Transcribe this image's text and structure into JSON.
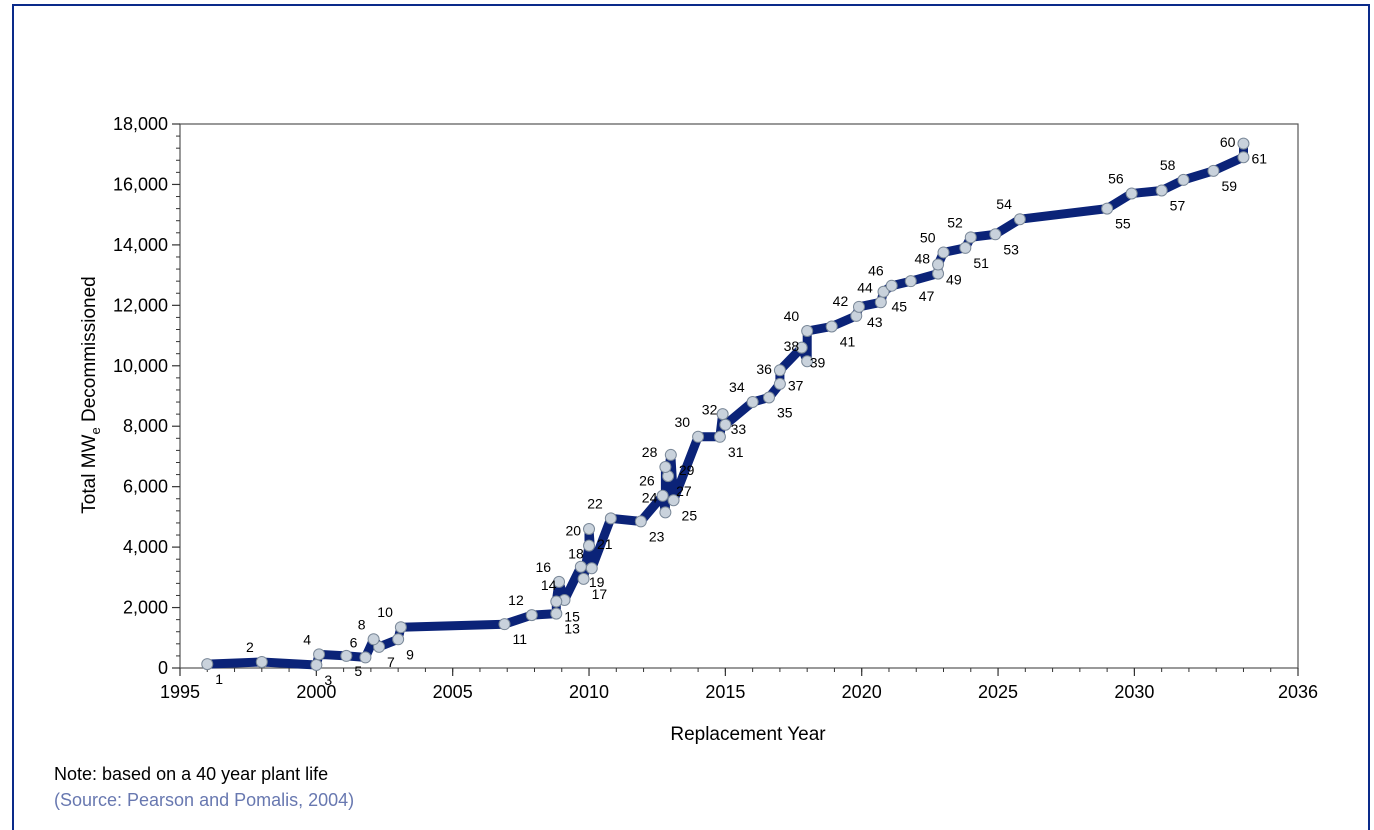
{
  "note": "Note:  based on a 40 year plant life",
  "source": "(Source: Pearson and Pomalis, 2004)",
  "colors": {
    "line": "#0b2378",
    "marker_fill": "#c9d2dc",
    "marker_stroke": "#7a8898",
    "frame": "#0a2a8a"
  },
  "chart_data": {
    "type": "line",
    "title": "",
    "xlabel": "Replacement Year",
    "ylabel_prefix": "Total MW",
    "ylabel_sub": "e",
    "ylabel_suffix": " Decommissioned",
    "xlim": [
      1995,
      2036
    ],
    "ylim": [
      0,
      18000
    ],
    "xticks": [
      1995,
      2000,
      2005,
      2010,
      2015,
      2020,
      2025,
      2030,
      2036
    ],
    "xtick_labels": [
      "1995",
      "2000",
      "2005",
      "2010",
      "2015",
      "2020",
      "2025",
      "2030",
      "2036"
    ],
    "yticks": [
      0,
      2000,
      4000,
      6000,
      8000,
      10000,
      12000,
      14000,
      16000,
      18000
    ],
    "ytick_labels": [
      "0",
      "2,000",
      "4,000",
      "6,000",
      "8,000",
      "10,000",
      "12,000",
      "14,000",
      "16,000",
      "18,000"
    ],
    "grid": false,
    "series": [
      {
        "points": [
          {
            "n": "1",
            "x": 1996.0,
            "y": 130
          },
          {
            "n": "2",
            "x": 1998.0,
            "y": 200
          },
          {
            "n": "3",
            "x": 2000.0,
            "y": 100
          },
          {
            "n": "4",
            "x": 2000.1,
            "y": 450
          },
          {
            "n": "5",
            "x": 2001.1,
            "y": 400
          },
          {
            "n": "6",
            "x": 2001.8,
            "y": 350
          },
          {
            "n": "7",
            "x": 2002.3,
            "y": 700
          },
          {
            "n": "8",
            "x": 2002.1,
            "y": 950
          },
          {
            "n": "9",
            "x": 2003.0,
            "y": 950
          },
          {
            "n": "10",
            "x": 2003.1,
            "y": 1350
          },
          {
            "n": "11",
            "x": 2006.9,
            "y": 1450
          },
          {
            "n": "12",
            "x": 2007.9,
            "y": 1750
          },
          {
            "n": "13",
            "x": 2008.8,
            "y": 1800
          },
          {
            "n": "14",
            "x": 2009.1,
            "y": 2250
          },
          {
            "n": "15",
            "x": 2008.8,
            "y": 2200
          },
          {
            "n": "16",
            "x": 2008.9,
            "y": 2850
          },
          {
            "n": "17",
            "x": 2009.8,
            "y": 2950
          },
          {
            "n": "18",
            "x": 2010.1,
            "y": 3300
          },
          {
            "n": "19",
            "x": 2009.7,
            "y": 3350
          },
          {
            "n": "20",
            "x": 2010.0,
            "y": 4050
          },
          {
            "n": "21",
            "x": 2010.0,
            "y": 4600
          },
          {
            "n": "22",
            "x": 2010.8,
            "y": 4950
          },
          {
            "n": "23",
            "x": 2011.9,
            "y": 4850
          },
          {
            "n": "24",
            "x": 2012.8,
            "y": 5150
          },
          {
            "n": "25",
            "x": 2013.1,
            "y": 5550
          },
          {
            "n": "26",
            "x": 2012.7,
            "y": 5700
          },
          {
            "n": "27",
            "x": 2012.9,
            "y": 6350
          },
          {
            "n": "28",
            "x": 2012.8,
            "y": 6650
          },
          {
            "n": "29",
            "x": 2013.0,
            "y": 7050
          },
          {
            "n": "30",
            "x": 2014.0,
            "y": 7650
          },
          {
            "n": "31",
            "x": 2014.8,
            "y": 7650
          },
          {
            "n": "32",
            "x": 2015.0,
            "y": 8050
          },
          {
            "n": "33",
            "x": 2014.9,
            "y": 8400
          },
          {
            "n": "34",
            "x": 2016.0,
            "y": 8800
          },
          {
            "n": "35",
            "x": 2016.6,
            "y": 8950
          },
          {
            "n": "36",
            "x": 2017.0,
            "y": 9400
          },
          {
            "n": "37",
            "x": 2017.0,
            "y": 9850
          },
          {
            "n": "38",
            "x": 2018.0,
            "y": 10150
          },
          {
            "n": "39",
            "x": 2017.8,
            "y": 10600
          },
          {
            "n": "40",
            "x": 2018.0,
            "y": 11150
          },
          {
            "n": "41",
            "x": 2018.9,
            "y": 11300
          },
          {
            "n": "42",
            "x": 2019.8,
            "y": 11650
          },
          {
            "n": "43",
            "x": 2019.9,
            "y": 11950
          },
          {
            "n": "44",
            "x": 2020.7,
            "y": 12100
          },
          {
            "n": "45",
            "x": 2020.8,
            "y": 12450
          },
          {
            "n": "46",
            "x": 2021.1,
            "y": 12650
          },
          {
            "n": "47",
            "x": 2021.8,
            "y": 12800
          },
          {
            "n": "48",
            "x": 2022.8,
            "y": 13050
          },
          {
            "n": "49",
            "x": 2022.8,
            "y": 13350
          },
          {
            "n": "50",
            "x": 2023.0,
            "y": 13750
          },
          {
            "n": "51",
            "x": 2023.8,
            "y": 13900
          },
          {
            "n": "52",
            "x": 2024.0,
            "y": 14250
          },
          {
            "n": "53",
            "x": 2024.9,
            "y": 14350
          },
          {
            "n": "54",
            "x": 2025.8,
            "y": 14850
          },
          {
            "n": "55",
            "x": 2029.0,
            "y": 15200
          },
          {
            "n": "56",
            "x": 2029.9,
            "y": 15700
          },
          {
            "n": "57",
            "x": 2031.0,
            "y": 15800
          },
          {
            "n": "58",
            "x": 2031.8,
            "y": 16150
          },
          {
            "n": "59",
            "x": 2032.9,
            "y": 16450
          },
          {
            "n": "60",
            "x": 2034.0,
            "y": 16900
          },
          {
            "n": "61",
            "x": 2034.0,
            "y": 17350
          }
        ]
      }
    ]
  }
}
